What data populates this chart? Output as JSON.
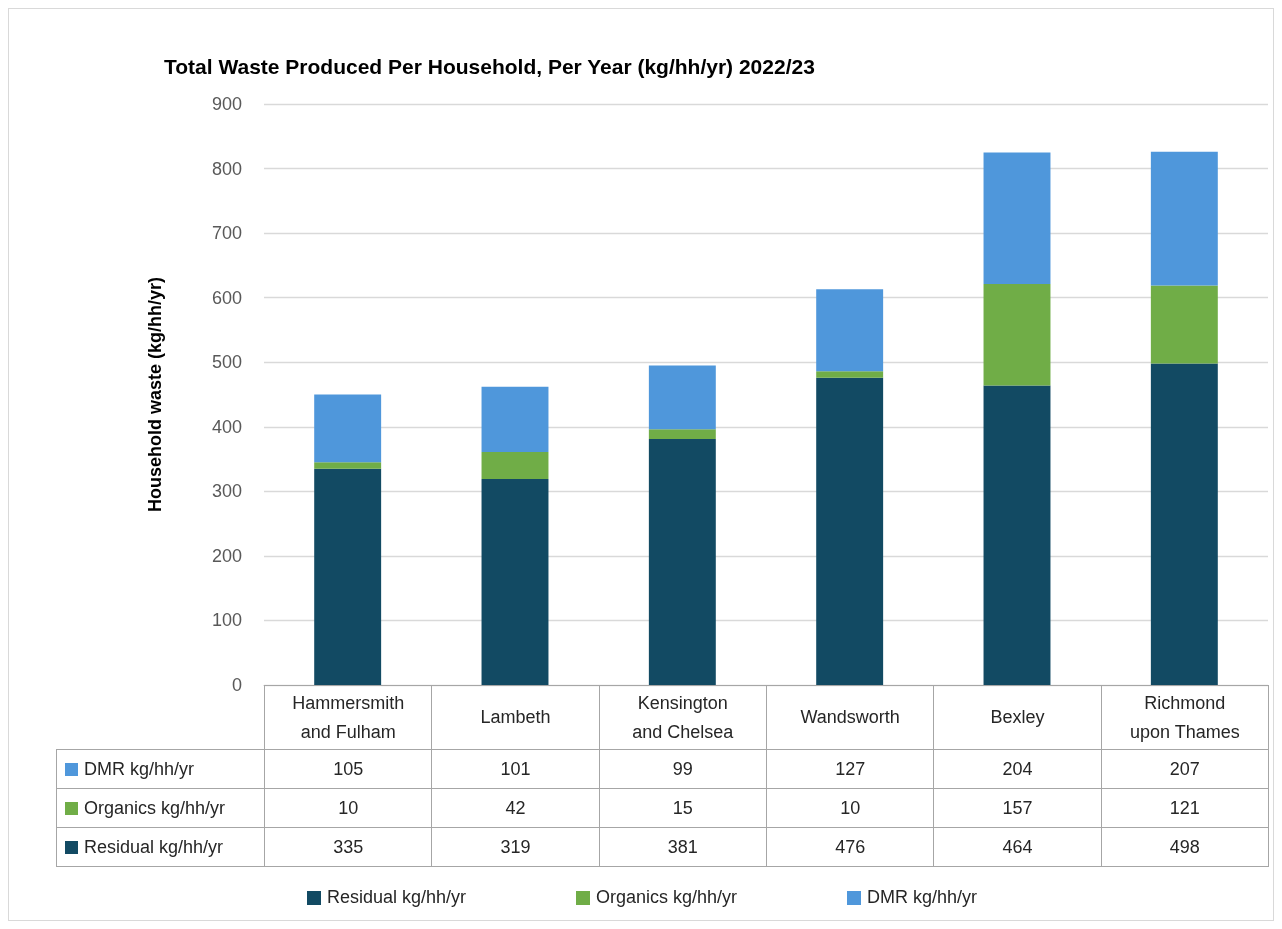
{
  "chart_data": {
    "type": "bar",
    "title": "Total Waste Produced Per Household, Per Year (kg/hh/yr) 2022/23",
    "ylabel": "Household waste (kg/hh/yr)",
    "categories": [
      "Hammersmith and Fulham",
      "Lambeth",
      "Kensington and Chelsea",
      "Wandsworth",
      "Bexley",
      "Richmond upon Thames"
    ],
    "stacked": true,
    "series": [
      {
        "name": "Residual kg/hh/yr",
        "color": "#124a63",
        "values": [
          335,
          319,
          381,
          476,
          464,
          498
        ]
      },
      {
        "name": "Organics kg/hh/yr",
        "color": "#70ad47",
        "values": [
          10,
          42,
          15,
          10,
          157,
          121
        ]
      },
      {
        "name": "DMR kg/hh/yr",
        "color": "#4f97db",
        "values": [
          105,
          101,
          99,
          127,
          204,
          207
        ]
      }
    ],
    "ylim": [
      0,
      900
    ],
    "yticks": [
      0,
      100,
      200,
      300,
      400,
      500,
      600,
      700,
      800,
      900
    ],
    "grid": "y",
    "legend": "bottom",
    "data_labels": true
  }
}
